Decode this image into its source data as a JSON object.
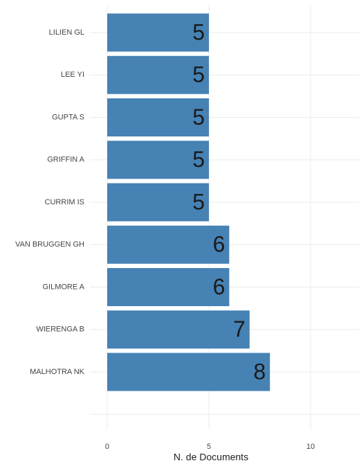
{
  "chart_data": {
    "type": "bar",
    "orientation": "horizontal",
    "x_label": "N. de Documents",
    "categories": [
      "LILIEN GL",
      "LEE YI",
      "GUPTA S",
      "GRIFFIN A",
      "CURRIM IS",
      "VAN BRUGGEN GH",
      "GILMORE A",
      "WIERENGA B",
      "MALHOTRA NK",
      null
    ],
    "values": [
      5,
      5,
      5,
      5,
      5,
      6,
      6,
      7,
      8,
      null
    ],
    "color": "#4682b4",
    "xlim": [
      -0.85,
      12.38
    ],
    "xticks": [
      0,
      5,
      10
    ],
    "grid": true
  }
}
